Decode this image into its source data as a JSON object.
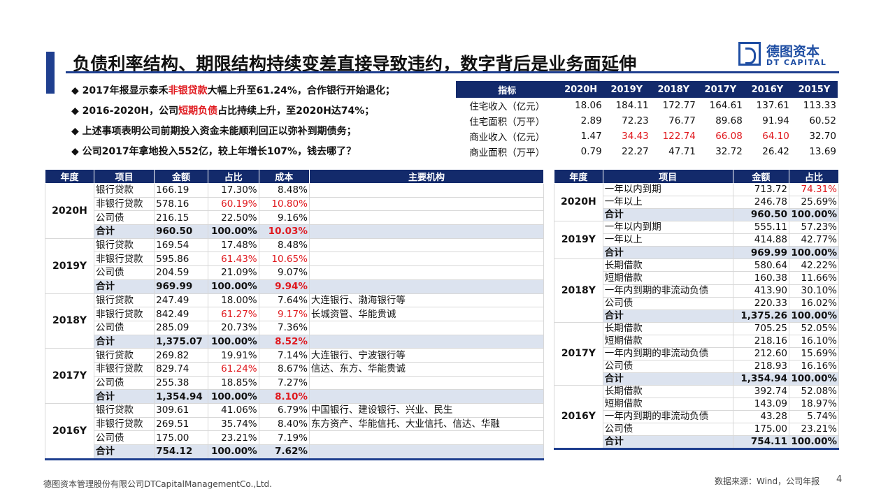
{
  "title": "负债利率结构、期限结构持续变差直接导致违约，数字背后是业务面延伸",
  "logo": {
    "cn": "德图资本",
    "en": "DT CAPITAL"
  },
  "bullets": [
    {
      "pre": "◆ 2017年报显示泰禾",
      "hl": "非银贷款",
      "post": "大幅上升至61.24%，合作银行开始退化；"
    },
    {
      "pre": "◆ 2016-2020H，公司",
      "hl": "短期负债",
      "post": "占比持续上升，至2020H达74%；"
    },
    {
      "pre": "◆ 上述事项表明公司前期投入资金未能顺利回正以弥补到期债务；",
      "hl": "",
      "post": ""
    },
    {
      "pre": "◆ 公司2017年拿地投入552亿，较上年增长107%，钱去哪了？",
      "hl": "",
      "post": ""
    }
  ],
  "top_table": {
    "headers": [
      "指标",
      "2020H",
      "2019Y",
      "2018Y",
      "2017Y",
      "2016Y",
      "2015Y"
    ],
    "rows": [
      {
        "label": "住宅收入（亿元）",
        "values": [
          "18.06",
          "184.11",
          "172.77",
          "164.61",
          "137.61",
          "113.33"
        ],
        "red": [
          false,
          false,
          false,
          false,
          false,
          false
        ]
      },
      {
        "label": "住宅面积（万平）",
        "values": [
          "2.89",
          "72.23",
          "76.77",
          "89.68",
          "91.94",
          "60.52"
        ],
        "red": [
          false,
          false,
          false,
          false,
          false,
          false
        ]
      },
      {
        "label": "商业收入（亿元）",
        "values": [
          "1.47",
          "34.43",
          "122.74",
          "66.08",
          "64.10",
          "32.70"
        ],
        "red": [
          false,
          true,
          true,
          true,
          true,
          false
        ]
      },
      {
        "label": "商业面积（万平）",
        "values": [
          "0.79",
          "22.27",
          "47.71",
          "32.72",
          "26.42",
          "13.69"
        ],
        "red": [
          false,
          false,
          false,
          false,
          false,
          false
        ]
      }
    ]
  },
  "main_table": {
    "headers": [
      "年度",
      "项目",
      "金额",
      "占比",
      "成本",
      "主要机构"
    ],
    "groups": [
      {
        "year": "2020H",
        "rows": [
          {
            "item": "银行贷款",
            "amount": "166.19",
            "pct": "17.30%",
            "cost": "8.48%",
            "org": "",
            "pct_red": false,
            "cost_red": false
          },
          {
            "item": "非银行贷款",
            "amount": "578.16",
            "pct": "60.19%",
            "cost": "10.80%",
            "org": "",
            "pct_red": true,
            "cost_red": true
          },
          {
            "item": "公司债",
            "amount": "216.15",
            "pct": "22.50%",
            "cost": "9.16%",
            "org": "",
            "pct_red": false,
            "cost_red": false
          },
          {
            "item": "合计",
            "amount": "960.50",
            "pct": "100.00%",
            "cost": "10.03%",
            "org": "",
            "pct_red": false,
            "cost_red": true,
            "sum": true
          }
        ]
      },
      {
        "year": "2019Y",
        "rows": [
          {
            "item": "银行贷款",
            "amount": "169.54",
            "pct": "17.48%",
            "cost": "8.48%",
            "org": "",
            "pct_red": false,
            "cost_red": false
          },
          {
            "item": "非银行贷款",
            "amount": "595.86",
            "pct": "61.43%",
            "cost": "10.65%",
            "org": "",
            "pct_red": true,
            "cost_red": true
          },
          {
            "item": "公司债",
            "amount": "204.59",
            "pct": "21.09%",
            "cost": "9.07%",
            "org": "",
            "pct_red": false,
            "cost_red": false
          },
          {
            "item": "合计",
            "amount": "969.99",
            "pct": "100.00%",
            "cost": "9.94%",
            "org": "",
            "pct_red": false,
            "cost_red": true,
            "sum": true
          }
        ]
      },
      {
        "year": "2018Y",
        "rows": [
          {
            "item": "银行贷款",
            "amount": "247.49",
            "pct": "18.00%",
            "cost": "7.64%",
            "org": "大连银行、渤海银行等",
            "pct_red": false,
            "cost_red": false
          },
          {
            "item": "非银行贷款",
            "amount": "842.49",
            "pct": "61.27%",
            "cost": "9.17%",
            "org": "长城资管、华能贵诚",
            "pct_red": true,
            "cost_red": true
          },
          {
            "item": "公司债",
            "amount": "285.09",
            "pct": "20.73%",
            "cost": "7.36%",
            "org": "",
            "pct_red": false,
            "cost_red": false
          },
          {
            "item": "合计",
            "amount": "1,375.07",
            "pct": "100.00%",
            "cost": "8.52%",
            "org": "",
            "pct_red": false,
            "cost_red": true,
            "sum": true
          }
        ]
      },
      {
        "year": "2017Y",
        "rows": [
          {
            "item": "银行贷款",
            "amount": "269.82",
            "pct": "19.91%",
            "cost": "7.14%",
            "org": "大连银行、宁波银行等",
            "pct_red": false,
            "cost_red": false
          },
          {
            "item": "非银行贷款",
            "amount": "829.74",
            "pct": "61.24%",
            "cost": "8.67%",
            "org": "信达、东方、华能贵诚",
            "pct_red": true,
            "cost_red": false
          },
          {
            "item": "公司债",
            "amount": "255.38",
            "pct": "18.85%",
            "cost": "7.27%",
            "org": "",
            "pct_red": false,
            "cost_red": false
          },
          {
            "item": "合计",
            "amount": "1,354.94",
            "pct": "100.00%",
            "cost": "8.10%",
            "org": "",
            "pct_red": false,
            "cost_red": true,
            "sum": true
          }
        ]
      },
      {
        "year": "2016Y",
        "rows": [
          {
            "item": "银行贷款",
            "amount": "309.61",
            "pct": "41.06%",
            "cost": "6.79%",
            "org": "中国银行、建设银行、兴业、民生",
            "pct_red": false,
            "cost_red": false
          },
          {
            "item": "非银行贷款",
            "amount": "269.51",
            "pct": "35.74%",
            "cost": "8.40%",
            "org": "东方资产、华能信托、大业信托、信达、华融",
            "pct_red": false,
            "cost_red": false
          },
          {
            "item": "公司债",
            "amount": "175.00",
            "pct": "23.21%",
            "cost": "7.19%",
            "org": "",
            "pct_red": false,
            "cost_red": false
          },
          {
            "item": "合计",
            "amount": "754.12",
            "pct": "100.00%",
            "cost": "7.62%",
            "org": "",
            "pct_red": false,
            "cost_red": false,
            "sum": true
          }
        ]
      }
    ]
  },
  "right_table": {
    "headers": [
      "年度",
      "项目",
      "金额",
      "占比"
    ],
    "groups": [
      {
        "year": "2020H",
        "rows": [
          {
            "item": "一年以内到期",
            "amount": "713.72",
            "pct": "74.31%",
            "pct_red": true
          },
          {
            "item": "一年以上",
            "amount": "246.78",
            "pct": "25.69%",
            "pct_red": false
          },
          {
            "item": "合计",
            "amount": "960.50",
            "pct": "100.00%",
            "pct_red": false,
            "sum": true
          }
        ]
      },
      {
        "year": "2019Y",
        "rows": [
          {
            "item": "一年以内到期",
            "amount": "555.11",
            "pct": "57.23%",
            "pct_red": false
          },
          {
            "item": "一年以上",
            "amount": "414.88",
            "pct": "42.77%",
            "pct_red": false
          },
          {
            "item": "合计",
            "amount": "969.99",
            "pct": "100.00%",
            "pct_red": false,
            "sum": true
          }
        ]
      },
      {
        "year": "2018Y",
        "rows": [
          {
            "item": "长期借款",
            "amount": "580.64",
            "pct": "42.22%",
            "pct_red": false
          },
          {
            "item": "短期借款",
            "amount": "160.38",
            "pct": "11.66%",
            "pct_red": false
          },
          {
            "item": "一年内到期的非流动负债",
            "amount": "413.90",
            "pct": "30.10%",
            "pct_red": false
          },
          {
            "item": "公司债",
            "amount": "220.33",
            "pct": "16.02%",
            "pct_red": false
          },
          {
            "item": "合计",
            "amount": "1,375.26",
            "pct": "100.00%",
            "pct_red": false,
            "sum": true
          }
        ]
      },
      {
        "year": "2017Y",
        "rows": [
          {
            "item": "长期借款",
            "amount": "705.25",
            "pct": "52.05%",
            "pct_red": false
          },
          {
            "item": "短期借款",
            "amount": "218.16",
            "pct": "16.10%",
            "pct_red": false
          },
          {
            "item": "一年内到期的非流动负债",
            "amount": "212.60",
            "pct": "15.69%",
            "pct_red": false
          },
          {
            "item": "公司债",
            "amount": "218.93",
            "pct": "16.16%",
            "pct_red": false
          },
          {
            "item": "合计",
            "amount": "1,354.94",
            "pct": "100.00%",
            "pct_red": false,
            "sum": true
          }
        ]
      },
      {
        "year": "2016Y",
        "rows": [
          {
            "item": "长期借款",
            "amount": "392.74",
            "pct": "52.08%",
            "pct_red": false
          },
          {
            "item": "短期借款",
            "amount": "143.09",
            "pct": "18.97%",
            "pct_red": false
          },
          {
            "item": "一年内到期的非流动负债",
            "amount": "43.28",
            "pct": "5.74%",
            "pct_red": false
          },
          {
            "item": "公司债",
            "amount": "175.00",
            "pct": "23.21%",
            "pct_red": false
          },
          {
            "item": "合计",
            "amount": "754.11",
            "pct": "100.00%",
            "pct_red": false,
            "sum": true
          }
        ]
      }
    ]
  },
  "footer": {
    "left": "德图资本管理股份有限公司DTCapitalManagementCo.,Ltd.",
    "source": "数据来源：Wind，公司年报",
    "page": "4"
  },
  "colors": {
    "accent": "#1f3f8f",
    "header_bg": "#132a6b",
    "highlight": "#e0191e",
    "sum_bg": "#dce3ef"
  }
}
